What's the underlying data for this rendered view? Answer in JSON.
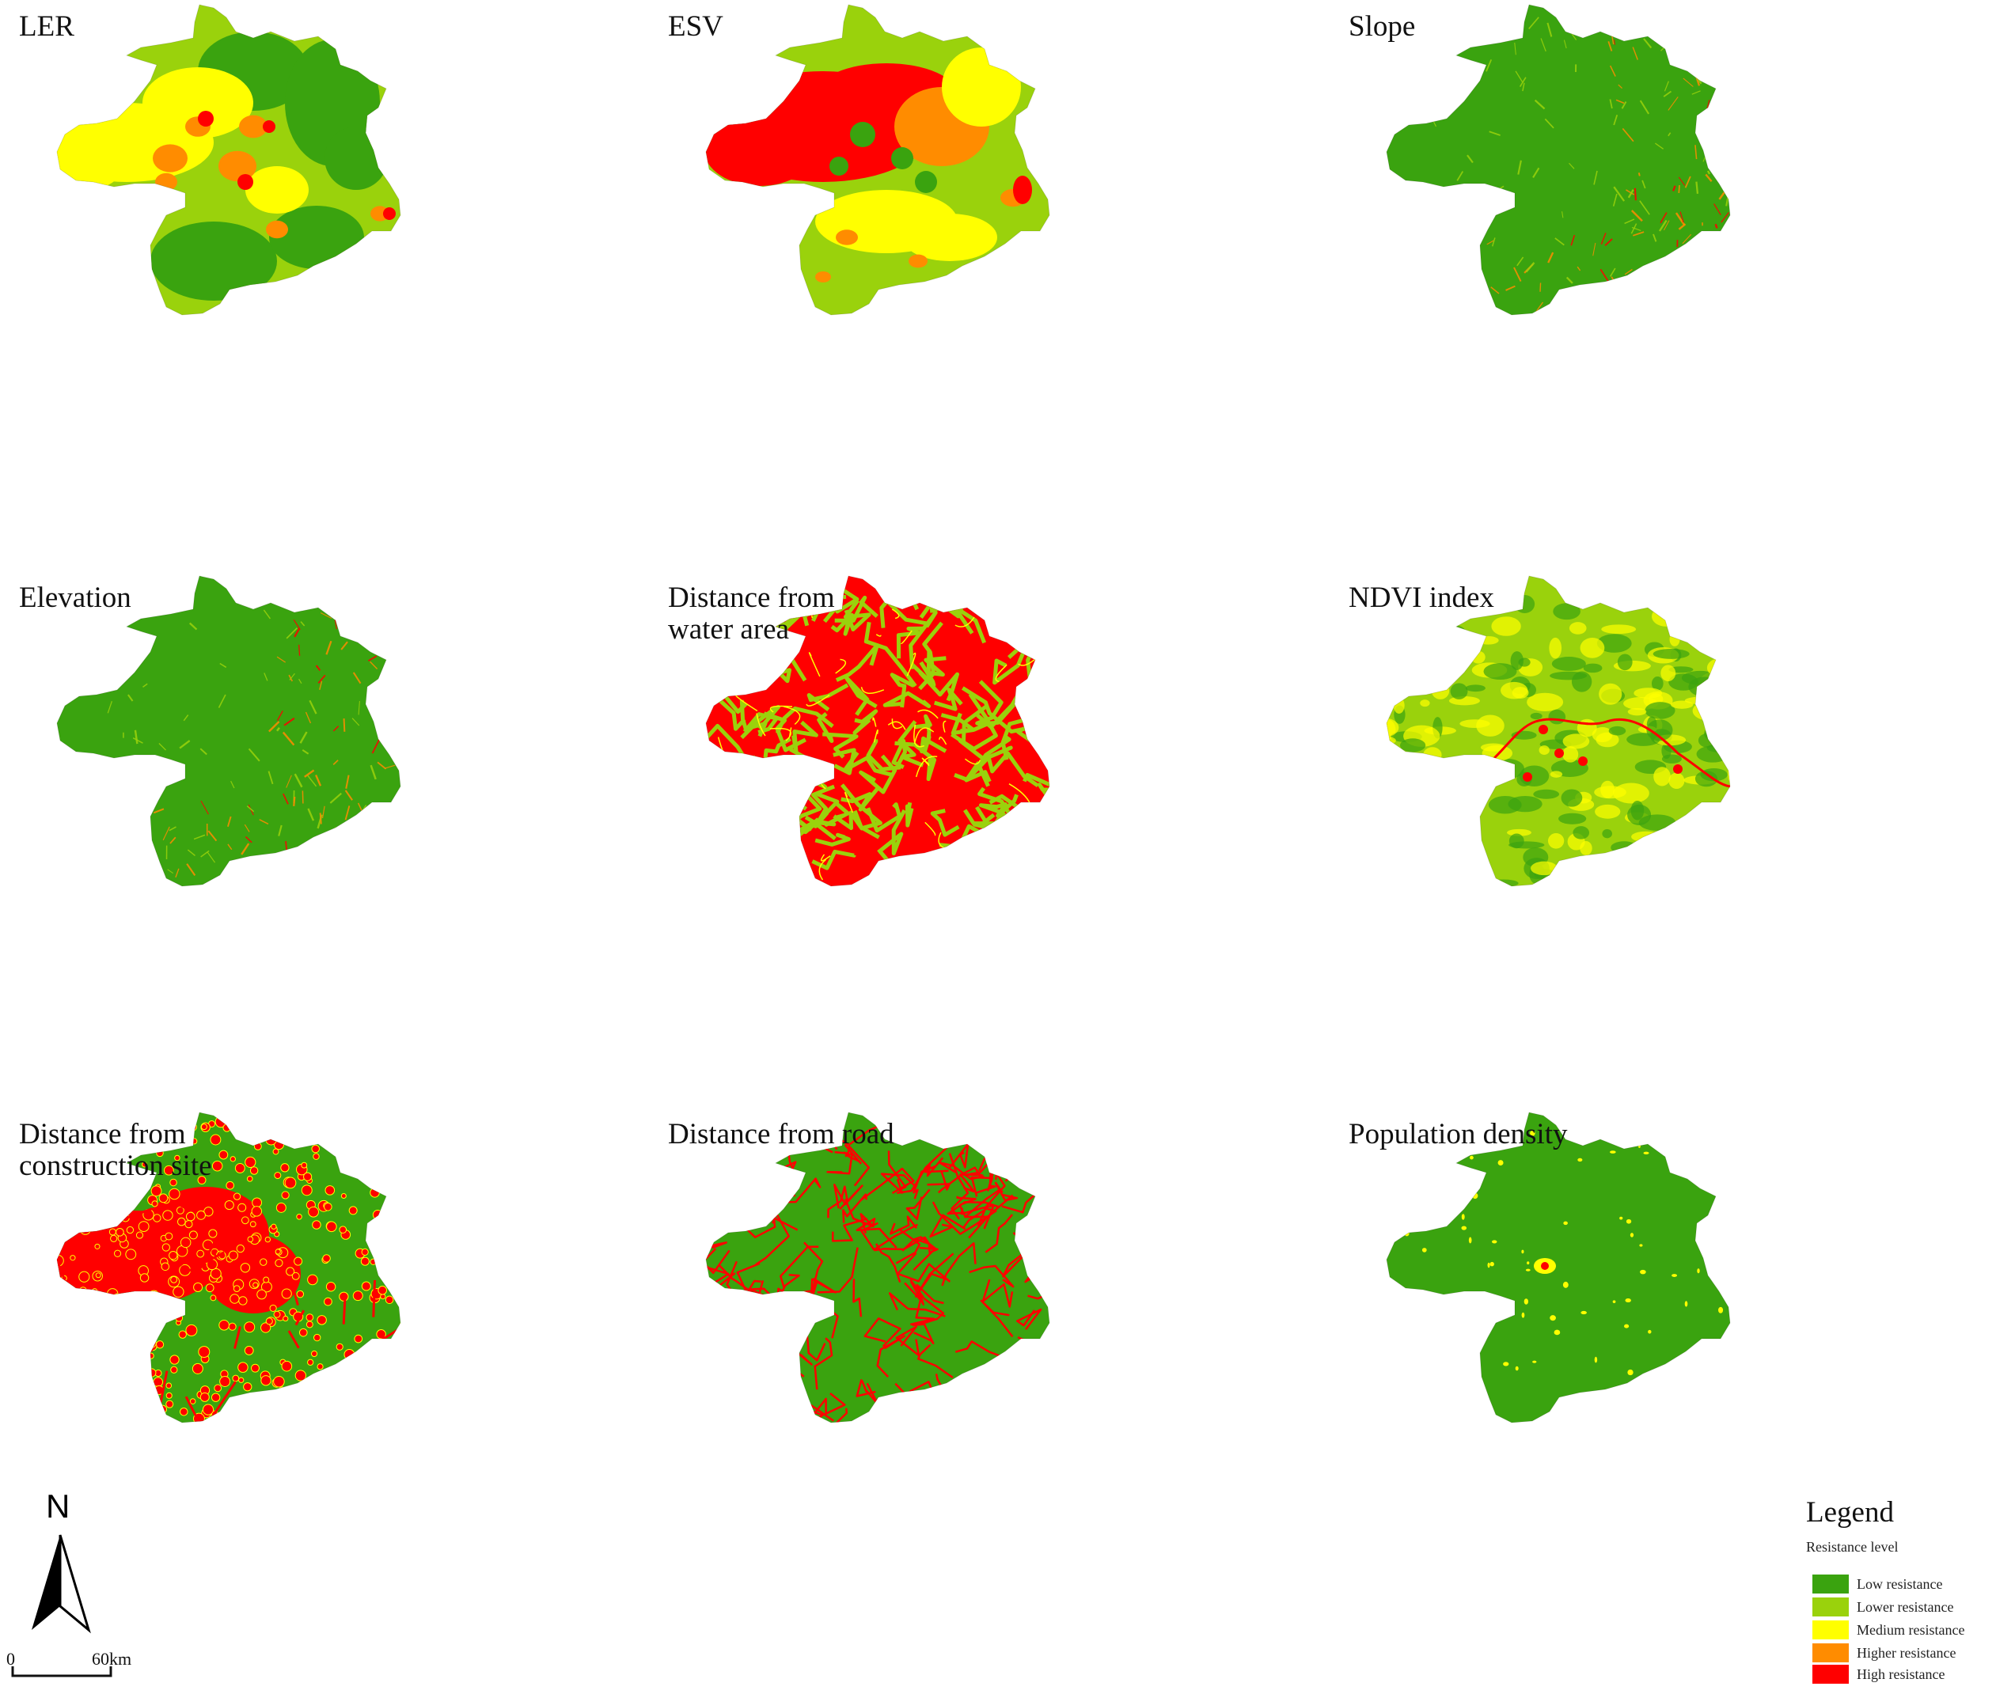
{
  "colors": {
    "low": "#3aa30f",
    "lower": "#9ad20c",
    "medium": "#ffff00",
    "higher": "#ff8c00",
    "high": "#ff0000",
    "dark_green": "#2f9a12"
  },
  "panels": [
    {
      "id": "ler",
      "title": "LER",
      "pattern": "ler"
    },
    {
      "id": "esv",
      "title": "ESV",
      "pattern": "esv"
    },
    {
      "id": "slope",
      "title": "Slope",
      "pattern": "slope"
    },
    {
      "id": "elevation",
      "title": "Elevation",
      "pattern": "elevation"
    },
    {
      "id": "water",
      "title": "Distance from\nwater area",
      "pattern": "network-red"
    },
    {
      "id": "ndvi",
      "title": "NDVI index",
      "pattern": "ndvi"
    },
    {
      "id": "construction",
      "title": "Distance from\nconstruction site",
      "pattern": "dots-red"
    },
    {
      "id": "road",
      "title": "Distance from road",
      "pattern": "network-green"
    },
    {
      "id": "population",
      "title": "Population density",
      "pattern": "population"
    }
  ],
  "north_arrow": {
    "label": "N",
    "icon": "north-arrow-icon"
  },
  "scale_bar": {
    "start": "0",
    "end": "60km"
  },
  "legend": {
    "title": "Legend",
    "subtitle": "Resistance level",
    "items": [
      {
        "label": "Low resistance",
        "color": "#3aa30f"
      },
      {
        "label": "Lower resistance",
        "color": "#9ad20c"
      },
      {
        "label": "Medium resistance",
        "color": "#ffff00"
      },
      {
        "label": "Higher resistance",
        "color": "#ff8c00"
      },
      {
        "label": "High resistance",
        "color": "#ff0000"
      }
    ]
  }
}
